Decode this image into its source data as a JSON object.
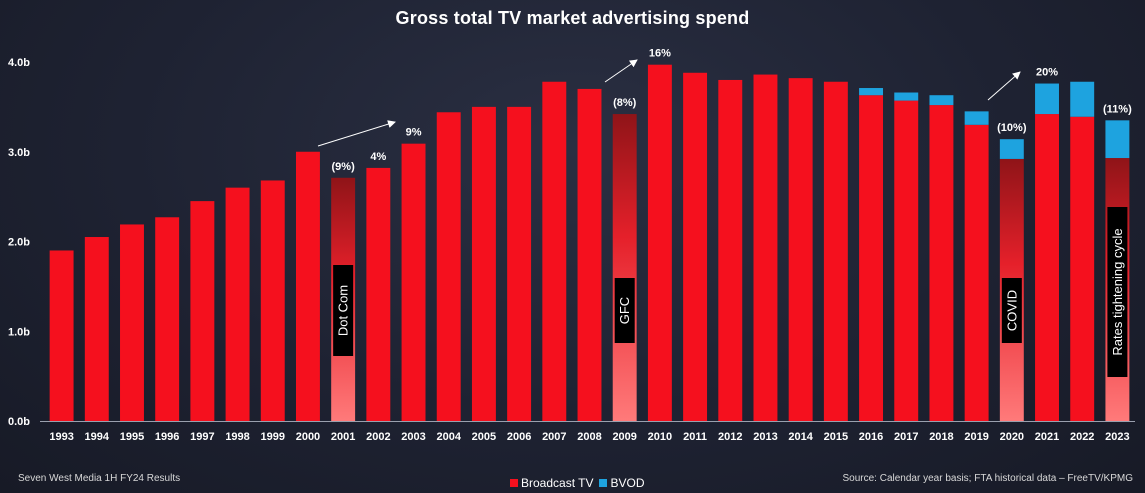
{
  "chart_data": {
    "type": "bar",
    "title": "Gross total TV market advertising spend",
    "categories": [
      "1993",
      "1994",
      "1995",
      "1996",
      "1997",
      "1998",
      "1999",
      "2000",
      "2001",
      "2002",
      "2003",
      "2004",
      "2005",
      "2006",
      "2007",
      "2008",
      "2009",
      "2010",
      "2011",
      "2012",
      "2013",
      "2014",
      "2015",
      "2016",
      "2017",
      "2018",
      "2019",
      "2020",
      "2021",
      "2022",
      "2023"
    ],
    "series": [
      {
        "name": "Broadcast TV",
        "color": "#f5101e",
        "values": [
          1.9,
          2.05,
          2.19,
          2.27,
          2.45,
          2.6,
          2.68,
          3.0,
          2.71,
          2.82,
          3.09,
          3.44,
          3.5,
          3.5,
          3.78,
          3.7,
          3.42,
          3.97,
          3.88,
          3.8,
          3.86,
          3.82,
          3.78,
          3.63,
          3.57,
          3.52,
          3.3,
          2.92,
          3.42,
          3.39,
          2.93
        ]
      },
      {
        "name": "BVOD",
        "color": "#1ea3df",
        "values": [
          0,
          0,
          0,
          0,
          0,
          0,
          0,
          0,
          0,
          0,
          0,
          0,
          0,
          0,
          0,
          0,
          0,
          0,
          0,
          0,
          0,
          0,
          0,
          0.08,
          0.09,
          0.11,
          0.15,
          0.22,
          0.34,
          0.39,
          0.42
        ]
      }
    ],
    "ylim": [
      0,
      4.0
    ],
    "yticks": [
      "0.0b",
      "1.0b",
      "2.0b",
      "3.0b",
      "4.0b"
    ],
    "pct_labels": [
      {
        "year": "2001",
        "text": "(9%)"
      },
      {
        "year": "2002",
        "text": "4%"
      },
      {
        "year": "2003",
        "text": "9%"
      },
      {
        "year": "2009",
        "text": "(8%)"
      },
      {
        "year": "2010",
        "text": "16%"
      },
      {
        "year": "2020",
        "text": "(10%)"
      },
      {
        "year": "2021",
        "text": "20%"
      },
      {
        "year": "2023",
        "text": "(11%)"
      }
    ],
    "events": [
      {
        "year": "2001",
        "text": "Dot Com"
      },
      {
        "year": "2009",
        "text": "GFC"
      },
      {
        "year": "2020",
        "text": "COVID"
      },
      {
        "year": "2023",
        "text": "Rates tightening cycle"
      }
    ]
  },
  "footer": {
    "left": "Seven West Media  1H FY24 Results",
    "right": "Source: Calendar year basis; FTA historical data – FreeTV/KPMG"
  },
  "legend": {
    "broadcast": "Broadcast TV",
    "bvod": "BVOD"
  }
}
